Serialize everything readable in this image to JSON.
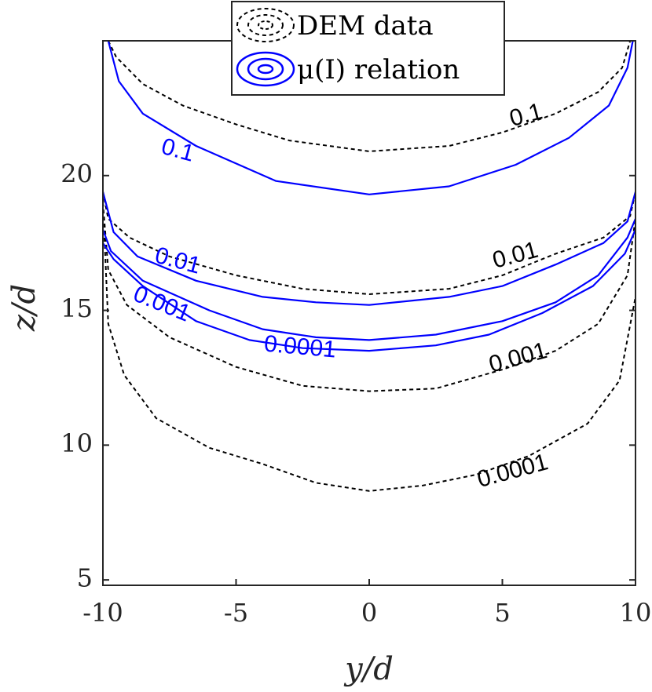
{
  "chart_data": {
    "type": "contour",
    "xlabel": "y/d",
    "ylabel": "z/d",
    "xlim": [
      -10,
      10
    ],
    "ylim": [
      4.8,
      25
    ],
    "xticks": [
      -10,
      -5,
      0,
      5,
      10
    ],
    "yticks": [
      5,
      10,
      15,
      20
    ],
    "xtick_labels": [
      "-10",
      "-5",
      "0",
      "5",
      "10"
    ],
    "ytick_labels": [
      "5",
      "10",
      "15",
      "20"
    ],
    "grid": false,
    "legend_position": "top",
    "legend": [
      {
        "label": "DEM data",
        "style": "dashed",
        "color": "#000000"
      },
      {
        "label": "μ(I) relation",
        "style": "solid",
        "color": "#0000ff"
      }
    ],
    "series": [
      {
        "name": "DEM data",
        "color": "#000000",
        "style": "dashed",
        "contours": [
          {
            "level": "0.1",
            "label_at": [
              5.9,
              22.2
            ],
            "label_angle": -15,
            "points": [
              [
                -9.8,
                25.0
              ],
              [
                -9.5,
                24.4
              ],
              [
                -8.5,
                23.4
              ],
              [
                -7,
                22.6
              ],
              [
                -5,
                21.9
              ],
              [
                -3,
                21.3
              ],
              [
                0,
                20.9
              ],
              [
                3,
                21.1
              ],
              [
                5,
                21.6
              ],
              [
                7,
                22.3
              ],
              [
                8.6,
                23.1
              ],
              [
                9.5,
                24.0
              ],
              [
                9.8,
                25.0
              ]
            ]
          },
          {
            "level": "0.01",
            "label_at": [
              5.5,
              17.0
            ],
            "label_angle": -15,
            "points": [
              [
                -10,
                19.4
              ],
              [
                -9.8,
                18.4
              ],
              [
                -9,
                17.7
              ],
              [
                -7.5,
                17.0
              ],
              [
                -5,
                16.3
              ],
              [
                -2.5,
                15.8
              ],
              [
                0,
                15.6
              ],
              [
                3,
                15.8
              ],
              [
                5,
                16.3
              ],
              [
                7,
                17.1
              ],
              [
                8.8,
                17.7
              ],
              [
                9.8,
                18.5
              ],
              [
                10,
                19.4
              ]
            ]
          },
          {
            "level": "0.001",
            "label_at": [
              5.6,
              13.2
            ],
            "label_angle": -15,
            "points": [
              [
                -10,
                19.0
              ],
              [
                -9.8,
                16.5
              ],
              [
                -9.1,
                15.2
              ],
              [
                -7.5,
                14.0
              ],
              [
                -5,
                12.9
              ],
              [
                -2.5,
                12.2
              ],
              [
                0,
                12.0
              ],
              [
                2.5,
                12.1
              ],
              [
                5,
                12.8
              ],
              [
                7,
                13.5
              ],
              [
                8.6,
                14.5
              ],
              [
                9.7,
                16.3
              ],
              [
                10,
                18.4
              ]
            ]
          },
          {
            "level": "0.0001",
            "label_at": [
              5.4,
              9.0
            ],
            "label_angle": -15,
            "points": [
              [
                -10,
                19.0
              ],
              [
                -9.8,
                14.5
              ],
              [
                -9.2,
                12.6
              ],
              [
                -8,
                11.0
              ],
              [
                -6,
                9.9
              ],
              [
                -4,
                9.3
              ],
              [
                -2,
                8.6
              ],
              [
                0,
                8.3
              ],
              [
                2,
                8.5
              ],
              [
                4,
                8.9
              ],
              [
                6,
                9.6
              ],
              [
                8.2,
                10.8
              ],
              [
                9.4,
                12.4
              ],
              [
                10,
                15.5
              ]
            ]
          }
        ]
      },
      {
        "name": "μ(I) relation",
        "color": "#0000ff",
        "style": "solid",
        "contours": [
          {
            "level": "0.1",
            "label_at": [
              -7.2,
              20.9
            ],
            "label_angle": 15,
            "points": [
              [
                -9.8,
                25.0
              ],
              [
                -9.4,
                23.5
              ],
              [
                -8.5,
                22.3
              ],
              [
                -6.5,
                21.1
              ],
              [
                -3.5,
                19.8
              ],
              [
                0,
                19.3
              ],
              [
                3,
                19.6
              ],
              [
                5.5,
                20.4
              ],
              [
                7.5,
                21.4
              ],
              [
                9,
                22.6
              ],
              [
                9.7,
                24.0
              ],
              [
                9.9,
                25.0
              ]
            ]
          },
          {
            "level": "0.01",
            "label_at": [
              -7.2,
              16.8
            ],
            "label_angle": 15,
            "points": [
              [
                -10,
                19.4
              ],
              [
                -9.6,
                17.9
              ],
              [
                -8.7,
                17.0
              ],
              [
                -6.5,
                16.1
              ],
              [
                -4,
                15.5
              ],
              [
                -2,
                15.3
              ],
              [
                0,
                15.2
              ],
              [
                3,
                15.5
              ],
              [
                5,
                15.9
              ],
              [
                7,
                16.7
              ],
              [
                8.8,
                17.5
              ],
              [
                9.7,
                18.3
              ],
              [
                10,
                19.4
              ]
            ]
          },
          {
            "level": "0.001",
            "label_at": [
              -7.8,
              15.2
            ],
            "label_angle": 22,
            "points": [
              [
                -10,
                18.0
              ],
              [
                -9.7,
                17.2
              ],
              [
                -8.5,
                16.1
              ],
              [
                -6,
                15.0
              ],
              [
                -4,
                14.3
              ],
              [
                -2,
                14.0
              ],
              [
                0,
                13.9
              ],
              [
                2.5,
                14.1
              ],
              [
                5,
                14.6
              ],
              [
                7,
                15.3
              ],
              [
                8.6,
                16.3
              ],
              [
                9.7,
                17.7
              ],
              [
                10,
                18.4
              ]
            ]
          },
          {
            "level": "0.0001",
            "label_at": [
              -2.6,
              13.6
            ],
            "label_angle": 5,
            "points": [
              [
                -10,
                17.5
              ],
              [
                -9.6,
                16.9
              ],
              [
                -8.5,
                15.9
              ],
              [
                -6.5,
                14.6
              ],
              [
                -4.5,
                13.9
              ],
              [
                -2.5,
                13.6
              ],
              [
                0,
                13.5
              ],
              [
                2.5,
                13.7
              ],
              [
                4.5,
                14.1
              ],
              [
                6.5,
                14.9
              ],
              [
                8.4,
                15.9
              ],
              [
                9.6,
                17.1
              ],
              [
                10,
                18.0
              ]
            ]
          }
        ]
      }
    ]
  }
}
